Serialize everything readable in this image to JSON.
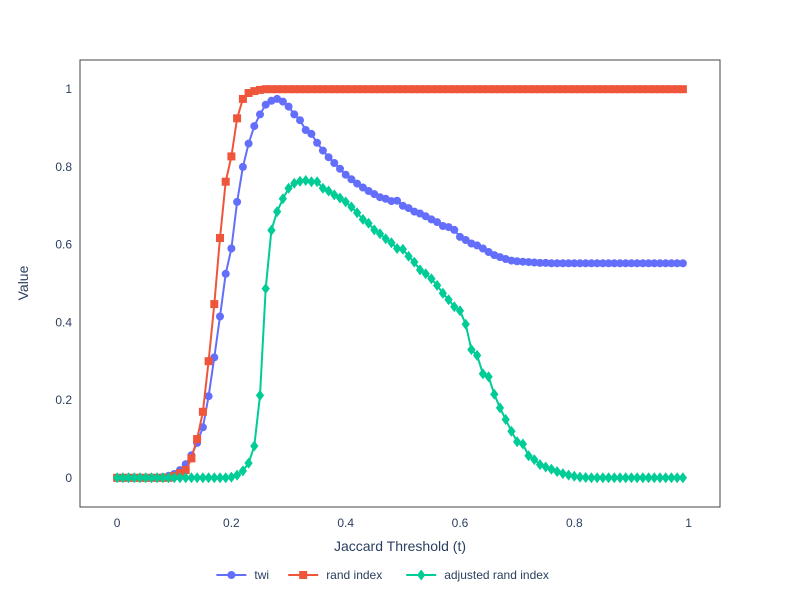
{
  "chart_data": {
    "type": "line",
    "title": "",
    "xlabel": "Jaccard Threshold (t)",
    "ylabel": "Value",
    "xlim": [
      -0.065,
      1.055
    ],
    "ylim": [
      -0.075,
      1.075
    ],
    "xticks": [
      0,
      0.2,
      0.4,
      0.6,
      0.8,
      1
    ],
    "xtick_labels": [
      "0",
      "0.2",
      "0.4",
      "0.6",
      "0.8",
      "1"
    ],
    "yticks": [
      0,
      0.2,
      0.4,
      0.6,
      0.8,
      1
    ],
    "ytick_labels": [
      "0",
      "0.2",
      "0.4",
      "0.6",
      "0.8",
      "1"
    ],
    "grid": false,
    "legend_position": "bottom-center",
    "x": [
      0,
      0.01,
      0.02,
      0.03,
      0.04,
      0.05,
      0.06,
      0.07,
      0.08,
      0.09,
      0.1,
      0.11,
      0.12,
      0.13,
      0.14,
      0.15,
      0.16,
      0.17,
      0.18,
      0.19,
      0.2,
      0.21,
      0.22,
      0.23,
      0.24,
      0.25,
      0.26,
      0.27,
      0.28,
      0.29,
      0.3,
      0.31,
      0.32,
      0.33,
      0.34,
      0.35,
      0.36,
      0.37,
      0.38,
      0.39,
      0.4,
      0.41,
      0.42,
      0.43,
      0.44,
      0.45,
      0.46,
      0.47,
      0.48,
      0.49,
      0.5,
      0.51,
      0.52,
      0.53,
      0.54,
      0.55,
      0.56,
      0.57,
      0.58,
      0.59,
      0.6,
      0.61,
      0.62,
      0.63,
      0.64,
      0.65,
      0.66,
      0.67,
      0.68,
      0.69,
      0.7,
      0.71,
      0.72,
      0.73,
      0.74,
      0.75,
      0.76,
      0.77,
      0.78,
      0.79,
      0.8,
      0.81,
      0.82,
      0.83,
      0.84,
      0.85,
      0.86,
      0.87,
      0.88,
      0.89,
      0.9,
      0.91,
      0.92,
      0.93,
      0.94,
      0.95,
      0.96,
      0.97,
      0.98,
      0.99
    ],
    "series": [
      {
        "name": "twi",
        "color": "#636efa",
        "marker": "circle",
        "values": [
          0,
          0,
          0,
          0,
          0,
          0,
          0,
          0,
          0.002,
          0.005,
          0.01,
          0.02,
          0.035,
          0.058,
          0.09,
          0.13,
          0.21,
          0.31,
          0.415,
          0.525,
          0.59,
          0.71,
          0.8,
          0.86,
          0.905,
          0.935,
          0.96,
          0.97,
          0.975,
          0.968,
          0.955,
          0.935,
          0.92,
          0.895,
          0.885,
          0.862,
          0.842,
          0.825,
          0.81,
          0.795,
          0.78,
          0.768,
          0.757,
          0.747,
          0.738,
          0.73,
          0.722,
          0.718,
          0.712,
          0.713,
          0.7,
          0.694,
          0.685,
          0.68,
          0.673,
          0.665,
          0.658,
          0.648,
          0.645,
          0.638,
          0.62,
          0.612,
          0.603,
          0.598,
          0.59,
          0.581,
          0.573,
          0.568,
          0.563,
          0.559,
          0.557,
          0.556,
          0.555,
          0.554,
          0.553,
          0.553,
          0.552,
          0.552,
          0.552,
          0.552,
          0.552,
          0.552,
          0.552,
          0.552,
          0.552,
          0.552,
          0.552,
          0.552,
          0.552,
          0.552,
          0.552,
          0.552,
          0.552,
          0.552,
          0.552,
          0.552,
          0.552,
          0.552,
          0.552,
          0.552
        ]
      },
      {
        "name": "rand index",
        "color": "#ef553b",
        "marker": "square",
        "values": [
          0,
          0,
          0,
          0,
          0,
          0,
          0,
          0,
          0,
          0,
          0.005,
          0.012,
          0.02,
          0.05,
          0.1,
          0.17,
          0.3,
          0.447,
          0.617,
          0.762,
          0.827,
          0.925,
          0.975,
          0.99,
          0.995,
          0.998,
          1,
          1,
          1,
          1,
          1,
          1,
          1,
          1,
          1,
          1,
          1,
          1,
          1,
          1,
          1,
          1,
          1,
          1,
          1,
          1,
          1,
          1,
          1,
          1,
          1,
          1,
          1,
          1,
          1,
          1,
          1,
          1,
          1,
          1,
          1,
          1,
          1,
          1,
          1,
          1,
          1,
          1,
          1,
          1,
          1,
          1,
          1,
          1,
          1,
          1,
          1,
          1,
          1,
          1,
          1,
          1,
          1,
          1,
          1,
          1,
          1,
          1,
          1,
          1,
          1,
          1,
          1,
          1,
          1,
          1,
          1,
          1,
          1,
          1
        ]
      },
      {
        "name": "adjusted rand index",
        "color": "#00cc96",
        "marker": "diamond",
        "values": [
          0,
          0,
          0,
          0,
          0,
          0,
          0,
          0,
          0,
          0,
          0,
          0,
          0,
          0,
          0,
          0,
          0,
          0,
          0,
          0,
          0.002,
          0.007,
          0.018,
          0.038,
          0.082,
          0.212,
          0.487,
          0.637,
          0.685,
          0.718,
          0.745,
          0.758,
          0.763,
          0.765,
          0.762,
          0.762,
          0.745,
          0.738,
          0.728,
          0.72,
          0.71,
          0.697,
          0.682,
          0.665,
          0.655,
          0.638,
          0.628,
          0.615,
          0.605,
          0.59,
          0.588,
          0.57,
          0.555,
          0.535,
          0.525,
          0.512,
          0.495,
          0.475,
          0.458,
          0.44,
          0.43,
          0.395,
          0.33,
          0.315,
          0.268,
          0.26,
          0.215,
          0.18,
          0.15,
          0.12,
          0.093,
          0.087,
          0.057,
          0.047,
          0.034,
          0.028,
          0.022,
          0.016,
          0.011,
          0.007,
          0.004,
          0.002,
          0.001,
          0,
          0,
          0,
          0,
          0,
          0,
          0,
          0,
          0,
          0,
          0,
          0,
          0,
          0,
          0,
          0,
          0
        ]
      }
    ]
  }
}
